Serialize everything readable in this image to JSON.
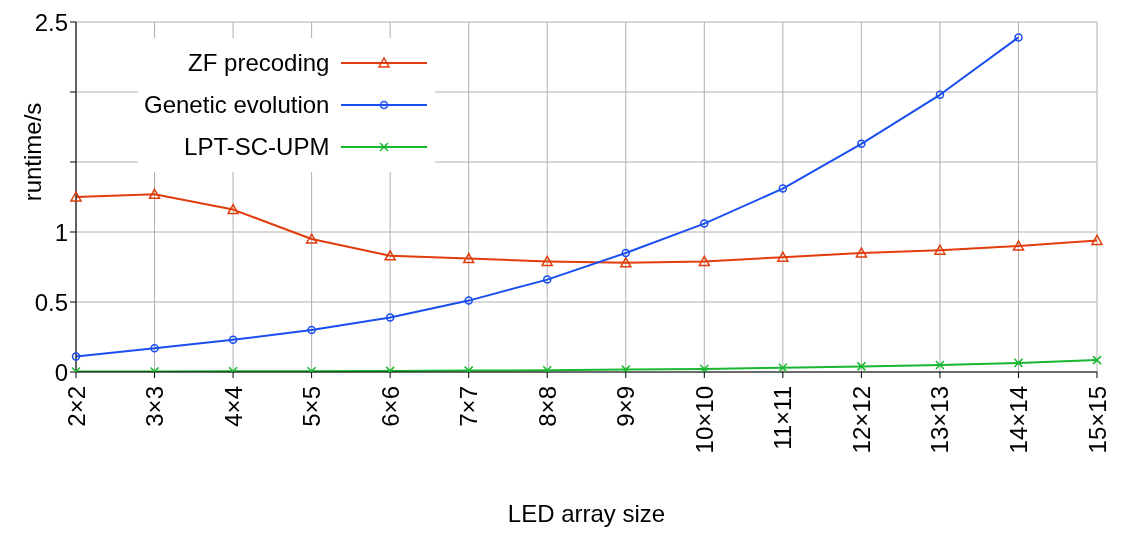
{
  "chart_data": {
    "type": "line",
    "xlabel": "LED array size",
    "ylabel": "runtime/s",
    "categories": [
      "2×2",
      "3×3",
      "4×4",
      "5×5",
      "6×6",
      "7×7",
      "8×8",
      "9×9",
      "10×10",
      "11×11",
      "12×12",
      "13×13",
      "14×14",
      "15×15"
    ],
    "series": [
      {
        "name": "ZF precoding",
        "color": "#e03c0c",
        "marker": "triangle",
        "values": [
          1.25,
          1.27,
          1.16,
          0.95,
          0.83,
          0.81,
          0.79,
          0.78,
          0.79,
          0.82,
          0.85,
          0.87,
          0.9,
          0.94
        ]
      },
      {
        "name": "Genetic evolution",
        "color": "#1a4ef0",
        "marker": "circle",
        "values": [
          0.11,
          0.17,
          0.23,
          0.3,
          0.39,
          0.51,
          0.66,
          0.85,
          1.06,
          1.31,
          1.63,
          1.98,
          2.39,
          null
        ]
      },
      {
        "name": "LPT-SC-UPM",
        "color": "#18b830",
        "marker": "cross",
        "values": [
          0.003,
          0.004,
          0.005,
          0.006,
          0.008,
          0.01,
          0.013,
          0.017,
          0.022,
          0.03,
          0.04,
          0.05,
          0.065,
          0.085
        ]
      }
    ],
    "ylim": [
      0,
      2.5
    ],
    "yticks": [
      0,
      0.5,
      1,
      {
        "value": 1.5,
        "label": null
      },
      {
        "value": 2,
        "label": null
      },
      2.5
    ],
    "grid": true,
    "legend": "top left",
    "line_style": "solid"
  }
}
